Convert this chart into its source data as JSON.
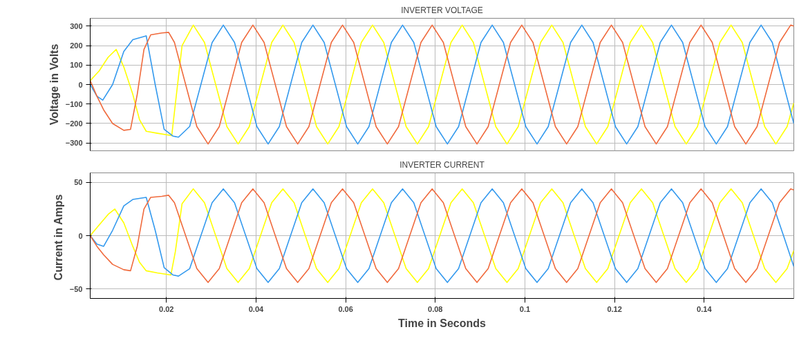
{
  "chart_data": [
    {
      "type": "line",
      "title": "INVERTER VOLTAGE",
      "ylabel": "Voltage in Volts",
      "xlim": [
        0.003,
        0.16
      ],
      "ylim": [
        -340,
        340
      ],
      "xticks": [
        0.02,
        0.04,
        0.06,
        0.08,
        0.1,
        0.12,
        0.14
      ],
      "yticks": [
        -300,
        -200,
        -100,
        0,
        100,
        200,
        300
      ],
      "grid": true,
      "tick_labels": "y",
      "series": [
        {
          "color": "#ffff00",
          "x": [
            0.003,
            0.005,
            0.007,
            0.0088,
            0.0105,
            0.0125,
            0.014,
            0.0155,
            0.018,
            0.0212,
            0.022,
            0.0235,
            0.026,
            0.0285,
            0.031,
            0.0335,
            0.036,
            0.0385,
            0.041,
            0.0435,
            0.046,
            0.0485,
            0.051,
            0.0535,
            0.056,
            0.0585,
            0.061,
            0.0635,
            0.066,
            0.0685,
            0.071,
            0.0735,
            0.076,
            0.0785,
            0.081,
            0.0835,
            0.086,
            0.0885,
            0.091,
            0.0935,
            0.096,
            0.0985,
            0.101,
            0.1035,
            0.106,
            0.1085,
            0.111,
            0.1135,
            0.116,
            0.1185,
            0.121,
            0.1235,
            0.126,
            0.1285,
            0.131,
            0.1335,
            0.136,
            0.1385,
            0.141,
            0.1435,
            0.146,
            0.1485,
            0.151,
            0.1535,
            0.156,
            0.1585,
            0.16
          ],
          "values": [
            20,
            70,
            140,
            180,
            90,
            -50,
            -180,
            -240,
            -250,
            -262,
            -100,
            200,
            305,
            216,
            0,
            -216,
            -305,
            -216,
            0,
            216,
            305,
            216,
            0,
            -216,
            -305,
            -216,
            0,
            216,
            305,
            216,
            0,
            -216,
            -305,
            -216,
            0,
            216,
            305,
            216,
            0,
            -216,
            -305,
            -216,
            0,
            216,
            305,
            216,
            0,
            -216,
            -305,
            -216,
            0,
            216,
            305,
            216,
            0,
            -216,
            -305,
            -216,
            0,
            216,
            305,
            216,
            0,
            -216,
            -305,
            -216,
            -95
          ]
        },
        {
          "color": "#3399ee",
          "x": [
            0.003,
            0.0045,
            0.0058,
            0.008,
            0.0105,
            0.0125,
            0.0155,
            0.0175,
            0.0195,
            0.0215,
            0.0227,
            0.0252,
            0.0277,
            0.0302,
            0.0327,
            0.0352,
            0.0377,
            0.0402,
            0.0427,
            0.0452,
            0.0477,
            0.0502,
            0.0527,
            0.0552,
            0.0577,
            0.0602,
            0.0627,
            0.0652,
            0.0677,
            0.0702,
            0.0727,
            0.0752,
            0.0777,
            0.0802,
            0.0827,
            0.0852,
            0.0877,
            0.0902,
            0.0927,
            0.0952,
            0.0977,
            0.1002,
            0.1027,
            0.1052,
            0.1077,
            0.1102,
            0.1127,
            0.1152,
            0.1177,
            0.1202,
            0.1227,
            0.1252,
            0.1277,
            0.1302,
            0.1327,
            0.1352,
            0.1377,
            0.1402,
            0.1427,
            0.1452,
            0.1477,
            0.1502,
            0.1527,
            0.1552,
            0.1577,
            0.16
          ],
          "values": [
            0,
            -60,
            -80,
            0,
            170,
            230,
            250,
            0,
            -230,
            -265,
            -270,
            -215,
            0,
            215,
            305,
            216,
            0,
            -216,
            -305,
            -216,
            0,
            216,
            305,
            216,
            0,
            -216,
            -305,
            -216,
            0,
            216,
            305,
            216,
            0,
            -216,
            -305,
            -216,
            0,
            216,
            305,
            216,
            0,
            -216,
            -305,
            -216,
            0,
            216,
            305,
            216,
            0,
            -216,
            -305,
            -216,
            0,
            216,
            305,
            216,
            0,
            -216,
            -305,
            -216,
            0,
            216,
            305,
            216,
            0,
            -200
          ]
        },
        {
          "color": "#f06a3c",
          "x": [
            0.003,
            0.0045,
            0.006,
            0.008,
            0.0105,
            0.012,
            0.0135,
            0.015,
            0.0165,
            0.019,
            0.0205,
            0.0218,
            0.0243,
            0.0268,
            0.0293,
            0.0318,
            0.0343,
            0.0368,
            0.0393,
            0.0418,
            0.0443,
            0.0468,
            0.0493,
            0.0518,
            0.0543,
            0.0568,
            0.0593,
            0.0618,
            0.0643,
            0.0668,
            0.0693,
            0.0718,
            0.0743,
            0.0768,
            0.0793,
            0.0818,
            0.0843,
            0.0868,
            0.0893,
            0.0918,
            0.0943,
            0.0968,
            0.0993,
            0.1018,
            0.1043,
            0.1068,
            0.1093,
            0.1118,
            0.1143,
            0.1168,
            0.1193,
            0.1218,
            0.1243,
            0.1268,
            0.1293,
            0.1318,
            0.1343,
            0.1368,
            0.1393,
            0.1418,
            0.1443,
            0.1468,
            0.1493,
            0.1518,
            0.1543,
            0.1568,
            0.1593,
            0.16
          ],
          "values": [
            20,
            -60,
            -130,
            -200,
            -235,
            -230,
            -50,
            180,
            255,
            265,
            268,
            216,
            0,
            -216,
            -305,
            -216,
            0,
            216,
            305,
            216,
            0,
            -216,
            -305,
            -216,
            0,
            216,
            305,
            216,
            0,
            -216,
            -305,
            -216,
            0,
            216,
            305,
            216,
            0,
            -216,
            -305,
            -216,
            0,
            216,
            305,
            216,
            0,
            -216,
            -305,
            -216,
            0,
            216,
            305,
            216,
            0,
            -216,
            -305,
            -216,
            0,
            216,
            305,
            216,
            0,
            -216,
            -305,
            -216,
            0,
            216,
            305,
            300
          ]
        }
      ]
    },
    {
      "type": "line",
      "title": "INVERTER CURRENT",
      "ylabel": "Current  in Amps",
      "xlabel": "Time in Seconds",
      "xlim": [
        0.003,
        0.16
      ],
      "ylim": [
        -59,
        59
      ],
      "xticks": [
        0.02,
        0.04,
        0.06,
        0.08,
        0.1,
        0.12,
        0.14
      ],
      "yticks": [
        -50,
        0,
        50
      ],
      "grid": true,
      "series": [
        {
          "color": "#ffff00",
          "x": [
            0.003,
            0.005,
            0.007,
            0.0085,
            0.0105,
            0.0125,
            0.014,
            0.0155,
            0.018,
            0.021,
            0.022,
            0.0235,
            0.026,
            0.0285,
            0.031,
            0.0335,
            0.036,
            0.0385,
            0.041,
            0.0435,
            0.046,
            0.0485,
            0.051,
            0.0535,
            0.056,
            0.0585,
            0.061,
            0.0635,
            0.066,
            0.0685,
            0.071,
            0.0735,
            0.076,
            0.0785,
            0.081,
            0.0835,
            0.086,
            0.0885,
            0.091,
            0.0935,
            0.096,
            0.0985,
            0.101,
            0.1035,
            0.106,
            0.1085,
            0.111,
            0.1135,
            0.116,
            0.1185,
            0.121,
            0.1235,
            0.126,
            0.1285,
            0.131,
            0.1335,
            0.136,
            0.1385,
            0.141,
            0.1435,
            0.146,
            0.1485,
            0.151,
            0.1535,
            0.156,
            0.1585,
            0.16
          ],
          "values": [
            0,
            10,
            20,
            25,
            12,
            -10,
            -25,
            -33,
            -35,
            -37,
            -15,
            30,
            44,
            31,
            0,
            -31,
            -44,
            -31,
            0,
            31,
            44,
            31,
            0,
            -31,
            -44,
            -31,
            0,
            31,
            44,
            31,
            0,
            -31,
            -44,
            -31,
            0,
            31,
            44,
            31,
            0,
            -31,
            -44,
            -31,
            0,
            31,
            44,
            31,
            0,
            -31,
            -44,
            -31,
            0,
            31,
            44,
            31,
            0,
            -31,
            -44,
            -31,
            0,
            31,
            44,
            31,
            0,
            -31,
            -44,
            -31,
            -14
          ]
        },
        {
          "color": "#3399ee",
          "x": [
            0.003,
            0.0045,
            0.006,
            0.008,
            0.0105,
            0.0125,
            0.0155,
            0.0175,
            0.0195,
            0.0215,
            0.0227,
            0.0252,
            0.0277,
            0.0302,
            0.0327,
            0.0352,
            0.0377,
            0.0402,
            0.0427,
            0.0452,
            0.0477,
            0.0502,
            0.0527,
            0.0552,
            0.0577,
            0.0602,
            0.0627,
            0.0652,
            0.0677,
            0.0702,
            0.0727,
            0.0752,
            0.0777,
            0.0802,
            0.0827,
            0.0852,
            0.0877,
            0.0902,
            0.0927,
            0.0952,
            0.0977,
            0.1002,
            0.1027,
            0.1052,
            0.1077,
            0.1102,
            0.1127,
            0.1152,
            0.1177,
            0.1202,
            0.1227,
            0.1252,
            0.1277,
            0.1302,
            0.1327,
            0.1352,
            0.1377,
            0.1402,
            0.1427,
            0.1452,
            0.1477,
            0.1502,
            0.1527,
            0.1552,
            0.1577,
            0.16
          ],
          "values": [
            0,
            -8,
            -10,
            5,
            28,
            34,
            36,
            5,
            -30,
            -37,
            -38,
            -31,
            0,
            31,
            44,
            31,
            0,
            -31,
            -44,
            -31,
            0,
            31,
            44,
            31,
            0,
            -31,
            -44,
            -31,
            0,
            31,
            44,
            31,
            0,
            -31,
            -44,
            -31,
            0,
            31,
            44,
            31,
            0,
            -31,
            -44,
            -31,
            0,
            31,
            44,
            31,
            0,
            -31,
            -44,
            -31,
            0,
            31,
            44,
            31,
            0,
            -31,
            -44,
            -31,
            0,
            31,
            44,
            31,
            0,
            -29
          ]
        },
        {
          "color": "#f06a3c",
          "x": [
            0.003,
            0.0045,
            0.006,
            0.008,
            0.0105,
            0.012,
            0.0135,
            0.015,
            0.0165,
            0.019,
            0.0205,
            0.0218,
            0.0243,
            0.0268,
            0.0293,
            0.0318,
            0.0343,
            0.0368,
            0.0393,
            0.0418,
            0.0443,
            0.0468,
            0.0493,
            0.0518,
            0.0543,
            0.0568,
            0.0593,
            0.0618,
            0.0643,
            0.0668,
            0.0693,
            0.0718,
            0.0743,
            0.0768,
            0.0793,
            0.0818,
            0.0843,
            0.0868,
            0.0893,
            0.0918,
            0.0943,
            0.0968,
            0.0993,
            0.1018,
            0.1043,
            0.1068,
            0.1093,
            0.1118,
            0.1143,
            0.1168,
            0.1193,
            0.1218,
            0.1243,
            0.1268,
            0.1293,
            0.1318,
            0.1343,
            0.1368,
            0.1393,
            0.1418,
            0.1443,
            0.1468,
            0.1493,
            0.1518,
            0.1543,
            0.1568,
            0.1593,
            0.16
          ],
          "values": [
            0,
            -10,
            -18,
            -27,
            -32,
            -33,
            -10,
            25,
            36,
            37,
            38,
            31,
            0,
            -31,
            -44,
            -31,
            0,
            31,
            44,
            31,
            0,
            -31,
            -44,
            -31,
            0,
            31,
            44,
            31,
            0,
            -31,
            -44,
            -31,
            0,
            31,
            44,
            31,
            0,
            -31,
            -44,
            -31,
            0,
            31,
            44,
            31,
            0,
            -31,
            -44,
            -31,
            0,
            31,
            44,
            31,
            0,
            -31,
            -44,
            -31,
            0,
            31,
            44,
            31,
            0,
            -31,
            -44,
            -31,
            0,
            31,
            44,
            43
          ]
        }
      ]
    }
  ]
}
